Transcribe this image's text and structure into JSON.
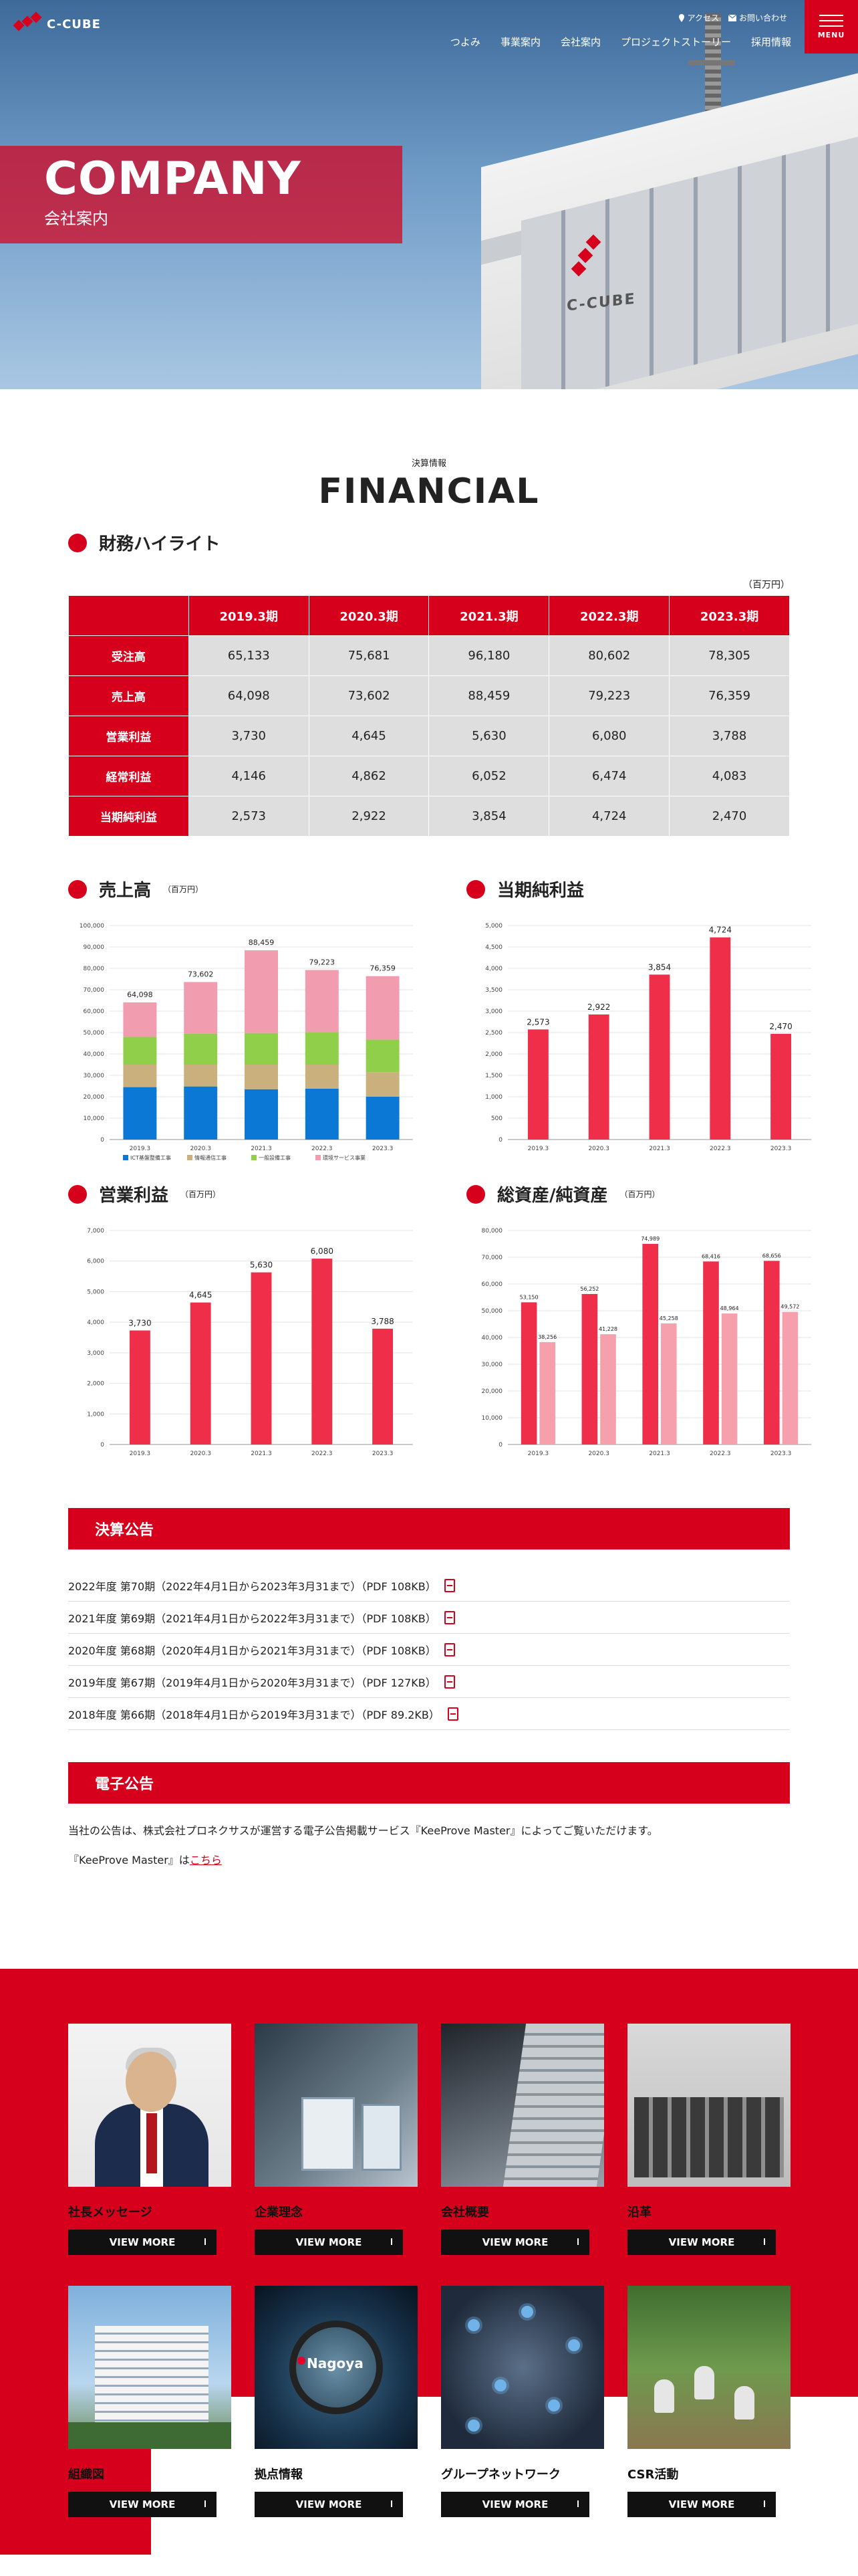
{
  "header": {
    "logo_text": "C-CUBE",
    "util_links": [
      {
        "label": "アクセス",
        "icon": "map-pin-icon"
      },
      {
        "label": "お問い合わせ",
        "icon": "mail-icon"
      }
    ],
    "nav": [
      "つよみ",
      "事業案内",
      "会社案内",
      "プロジェクトストーリー",
      "採用情報"
    ],
    "menu_label": "MENU"
  },
  "hero": {
    "title": "COMPANY",
    "subtitle": "会社案内",
    "sign_text": "C-CUBE"
  },
  "financial": {
    "eyebrow": "決算情報",
    "title": "FINANCIAL",
    "highlight_heading": "財務ハイライト",
    "unit_note": "（百万円）",
    "columns": [
      "2019.3期",
      "2020.3期",
      "2021.3期",
      "2022.3期",
      "2023.3期"
    ],
    "rows": [
      {
        "label": "受注高",
        "values": [
          "65,133",
          "75,681",
          "96,180",
          "80,602",
          "78,305"
        ]
      },
      {
        "label": "売上高",
        "values": [
          "64,098",
          "73,602",
          "88,459",
          "79,223",
          "76,359"
        ]
      },
      {
        "label": "営業利益",
        "values": [
          "3,730",
          "4,645",
          "5,630",
          "6,080",
          "3,788"
        ]
      },
      {
        "label": "経常利益",
        "values": [
          "4,146",
          "4,862",
          "6,052",
          "6,474",
          "4,083"
        ]
      },
      {
        "label": "当期純利益",
        "values": [
          "2,573",
          "2,922",
          "3,854",
          "4,724",
          "2,470"
        ]
      }
    ]
  },
  "chart_data": [
    {
      "type": "bar",
      "stacked": true,
      "title": "売上高",
      "unit": "（百万円）",
      "categories": [
        "2019.3",
        "2020.3",
        "2021.3",
        "2022.3",
        "2023.3"
      ],
      "ylim": [
        0,
        100000
      ],
      "yticks": [
        "0",
        "10,000",
        "20,000",
        "30,000",
        "40,000",
        "50,000",
        "60,000",
        "70,000",
        "80,000",
        "90,000",
        "100,000"
      ],
      "totals": [
        64098,
        73602,
        88459,
        79223,
        76359
      ],
      "total_labels": [
        "64,098",
        "73,602",
        "88,459",
        "79,223",
        "76,359"
      ],
      "series": [
        {
          "name": "ICT基盤整備工事",
          "color": "#0a78d4",
          "values": [
            24500,
            24800,
            23500,
            23800,
            20000
          ]
        },
        {
          "name": "情報通信工事",
          "color": "#c9b07c",
          "values": [
            10500,
            10200,
            11500,
            11200,
            11500
          ]
        },
        {
          "name": "一般設備工事",
          "color": "#8fcf4a",
          "values": [
            13000,
            14500,
            14800,
            15200,
            15200
          ]
        },
        {
          "name": "環境サービス事業",
          "color": "#f29cb0",
          "values": [
            16098,
            24102,
            38659,
            29023,
            29659
          ]
        }
      ],
      "grid": true,
      "legend": "bottom"
    },
    {
      "type": "bar",
      "title": "当期純利益",
      "categories": [
        "2019.3",
        "2020.3",
        "2021.3",
        "2022.3",
        "2023.3"
      ],
      "ylim": [
        0,
        5000
      ],
      "yticks": [
        "0",
        "500",
        "1,000",
        "1,500",
        "2,000",
        "2,500",
        "3,000",
        "3,500",
        "4,000",
        "4,500",
        "5,000"
      ],
      "values": [
        2573,
        2922,
        3854,
        4724,
        2470
      ],
      "value_labels": [
        "2,573",
        "2,922",
        "3,854",
        "4,724",
        "2,470"
      ],
      "color": "#ef2f49",
      "grid": true
    },
    {
      "type": "bar",
      "title": "営業利益",
      "unit": "（百万円）",
      "categories": [
        "2019.3",
        "2020.3",
        "2021.3",
        "2022.3",
        "2023.3"
      ],
      "ylim": [
        0,
        7000
      ],
      "yticks": [
        "0",
        "1,000",
        "2,000",
        "3,000",
        "4,000",
        "5,000",
        "6,000",
        "7,000"
      ],
      "values": [
        3730,
        4645,
        5630,
        6080,
        3788
      ],
      "value_labels": [
        "3,730",
        "4,645",
        "5,630",
        "6,080",
        "3,788"
      ],
      "color": "#ef2f49",
      "grid": true
    },
    {
      "type": "bar",
      "title": "総資産/純資産",
      "unit": "（百万円）",
      "categories": [
        "2019.3",
        "2020.3",
        "2021.3",
        "2022.3",
        "2023.3"
      ],
      "ylim": [
        0,
        80000
      ],
      "yticks": [
        "0",
        "10,000",
        "20,000",
        "30,000",
        "40,000",
        "50,000",
        "60,000",
        "70,000",
        "80,000"
      ],
      "series": [
        {
          "color": "#ef2f49",
          "values": [
            53150,
            56252,
            74989,
            68416,
            68656
          ],
          "labels": [
            "53,150",
            "56,252",
            "74,989",
            "68,416",
            "68,656"
          ]
        },
        {
          "color": "#f6a0ad",
          "values": [
            38256,
            41228,
            45258,
            48964,
            49572
          ],
          "labels": [
            "38,256",
            "41,228",
            "45,258",
            "48,964",
            "49,572"
          ]
        }
      ],
      "grid": true
    }
  ],
  "announcements": {
    "heading": "決算公告",
    "items": [
      "2022年度 第70期（2022年4月1日から2023年3月31まで）（PDF 108KB）",
      "2021年度 第69期（2021年4月1日から2022年3月31まで）（PDF 108KB）",
      "2020年度 第68期（2020年4月1日から2021年3月31まで）（PDF 108KB）",
      "2019年度 第67期（2019年4月1日から2020年3月31まで）（PDF 127KB）",
      "2018年度 第66期（2018年4月1日から2019年3月31まで）（PDF 89.2KB）"
    ]
  },
  "epublic": {
    "heading": "電子公告",
    "text1": "当社の公告は、株式会社プロネクサスが運営する電子公告掲載サービス『KeeProve Master』によってご覧いただけます。",
    "text2_prefix": "『KeeProve Master』は",
    "link_label": "こちら"
  },
  "cards": [
    {
      "title": "社長メッセージ",
      "button": "VIEW MORE"
    },
    {
      "title": "企業理念",
      "button": "VIEW MORE"
    },
    {
      "title": "会社概要",
      "button": "VIEW MORE"
    },
    {
      "title": "沿革",
      "button": "VIEW MORE"
    },
    {
      "title": "組織図",
      "button": "VIEW MORE"
    },
    {
      "title": "拠点情報",
      "button": "VIEW MORE",
      "photo_label": "Nagoya"
    },
    {
      "title": "グループネットワーク",
      "button": "VIEW MORE"
    },
    {
      "title": "CSR活動",
      "button": "VIEW MORE"
    }
  ]
}
